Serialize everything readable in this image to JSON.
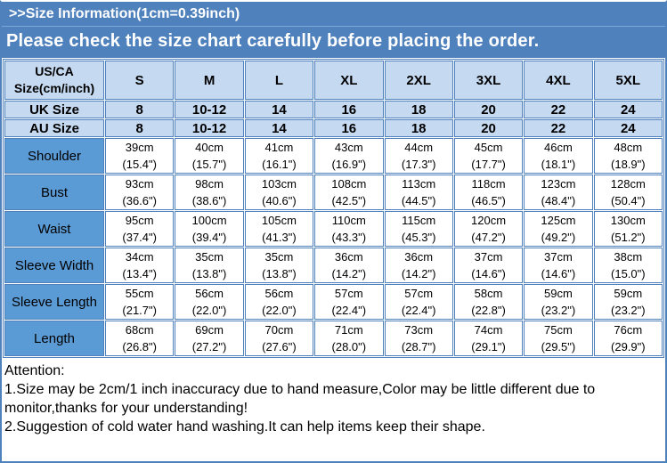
{
  "header": {
    "title": ">>Size Information(1cm=0.39inch)",
    "subtitle": "Please check the size chart carefully before placing the order."
  },
  "colors": {
    "band_blue": "#4f81bd",
    "band_divider": "#7da7d8",
    "header_cell_blue": "#c5d9f1",
    "label_cell_blue": "#5b9bd5",
    "border_blue": "#4f81bd",
    "text_dark": "#000000"
  },
  "size_table": {
    "corner_line1": "US/CA",
    "corner_line2": "Size(cm/inch)",
    "size_headers": [
      "S",
      "M",
      "L",
      "XL",
      "2XL",
      "3XL",
      "4XL",
      "5XL"
    ],
    "size_rows": [
      {
        "label": "UK Size",
        "values": [
          "8",
          "10-12",
          "14",
          "16",
          "18",
          "20",
          "22",
          "24"
        ]
      },
      {
        "label": "AU Size",
        "values": [
          "8",
          "10-12",
          "14",
          "16",
          "18",
          "20",
          "22",
          "24"
        ]
      }
    ],
    "measure_rows": [
      {
        "label": "Shoulder",
        "cm": [
          "39cm",
          "40cm",
          "41cm",
          "43cm",
          "44cm",
          "45cm",
          "46cm",
          "48cm"
        ],
        "inch": [
          "(15.4\")",
          "(15.7\")",
          "(16.1\")",
          "(16.9\")",
          "(17.3\")",
          "(17.7\")",
          "(18.1\")",
          "(18.9\")"
        ]
      },
      {
        "label": "Bust",
        "cm": [
          "93cm",
          "98cm",
          "103cm",
          "108cm",
          "113cm",
          "118cm",
          "123cm",
          "128cm"
        ],
        "inch": [
          "(36.6\")",
          "(38.6\")",
          "(40.6\")",
          "(42.5\")",
          "(44.5\")",
          "(46.5\")",
          "(48.4\")",
          "(50.4\")"
        ]
      },
      {
        "label": "Waist",
        "cm": [
          "95cm",
          "100cm",
          "105cm",
          "110cm",
          "115cm",
          "120cm",
          "125cm",
          "130cm"
        ],
        "inch": [
          "(37.4\")",
          "(39.4\")",
          "(41.3\")",
          "(43.3\")",
          "(45.3\")",
          "(47.2\")",
          "(49.2\")",
          "(51.2\")"
        ]
      },
      {
        "label": "Sleeve Width",
        "cm": [
          "34cm",
          "35cm",
          "35cm",
          "36cm",
          "36cm",
          "37cm",
          "37cm",
          "38cm"
        ],
        "inch": [
          "(13.4\")",
          "(13.8\")",
          "(13.8\")",
          "(14.2\")",
          "(14.2\")",
          "(14.6\")",
          "(14.6\")",
          "(15.0\")"
        ]
      },
      {
        "label": "Sleeve Length",
        "cm": [
          "55cm",
          "56cm",
          "56cm",
          "57cm",
          "57cm",
          "58cm",
          "59cm",
          "59cm"
        ],
        "inch": [
          "(21.7\")",
          "(22.0\")",
          "(22.0\")",
          "(22.4\")",
          "(22.4\")",
          "(22.8\")",
          "(23.2\")",
          "(23.2\")"
        ]
      },
      {
        "label": "Length",
        "cm": [
          "68cm",
          "69cm",
          "70cm",
          "71cm",
          "73cm",
          "74cm",
          "75cm",
          "76cm"
        ],
        "inch": [
          "(26.8\")",
          "(27.2\")",
          "(27.6\")",
          "(28.0\")",
          "(28.7\")",
          "(29.1\")",
          "(29.5\")",
          "(29.9\")"
        ]
      }
    ]
  },
  "attention": {
    "title": "Attention:",
    "notes": [
      "1.Size may be 2cm/1 inch inaccuracy due to hand measure,Color may be little different due to monitor,thanks for your understanding!",
      "2.Suggestion of cold water hand washing.It can help items keep their shape."
    ]
  }
}
